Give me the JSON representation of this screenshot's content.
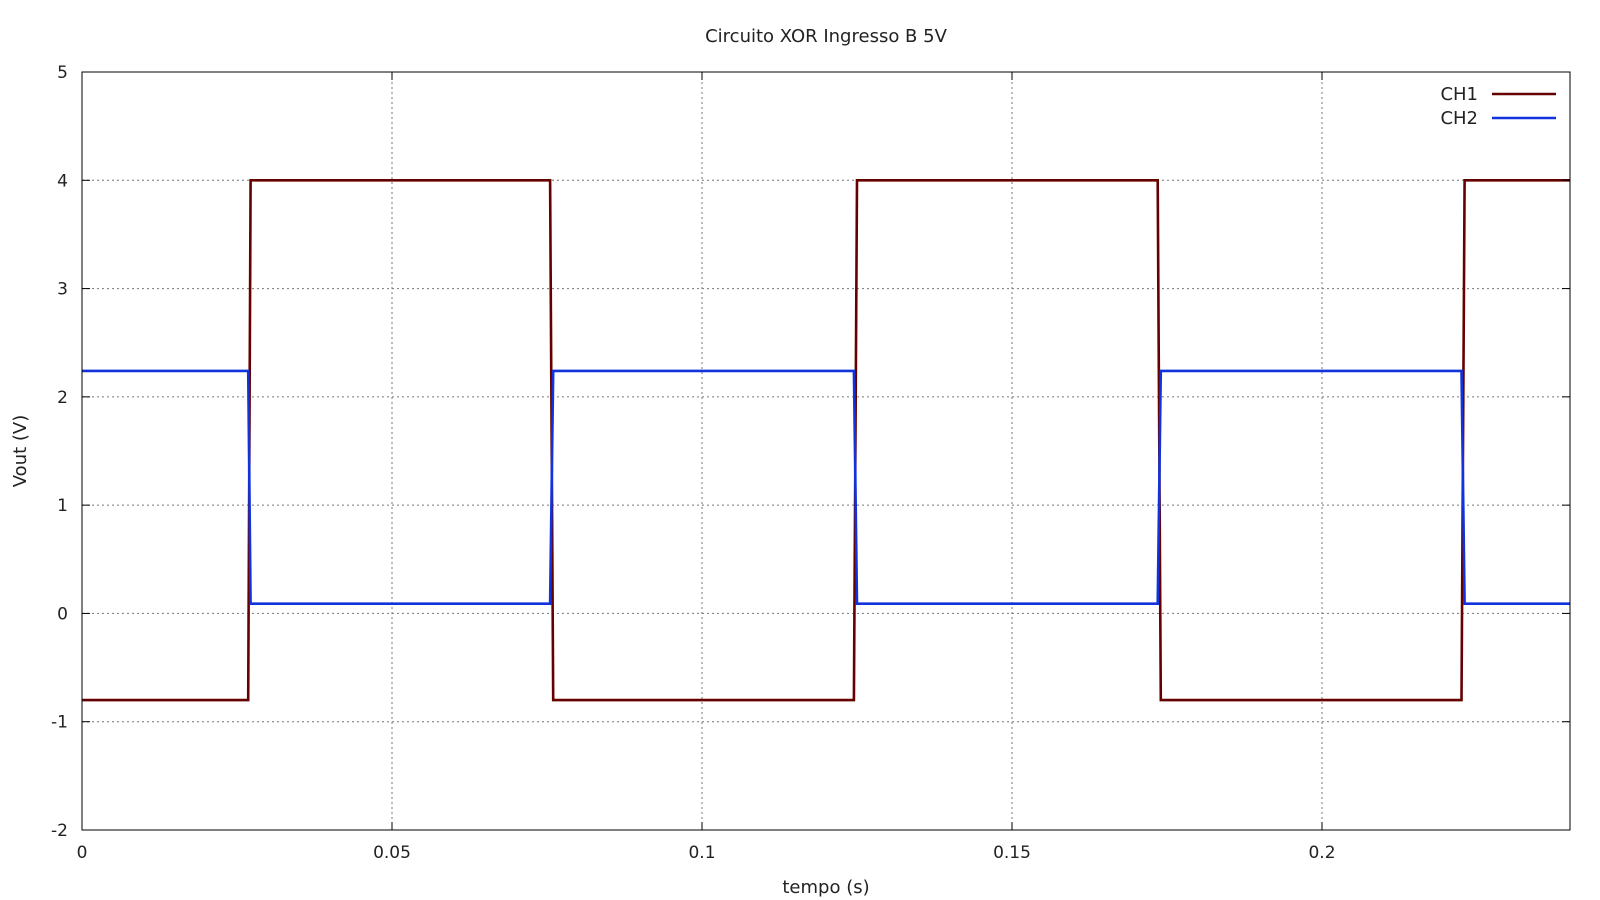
{
  "chart_data": {
    "type": "line",
    "title": "Circuito XOR Ingresso B 5V",
    "xlabel": "tempo (s)",
    "ylabel": "Vout (V)",
    "xlim": [
      0,
      0.24
    ],
    "ylim": [
      -2,
      5
    ],
    "x_ticks": [
      0,
      0.05,
      0.1,
      0.15,
      0.2
    ],
    "x_tick_labels": [
      "0",
      "0.05",
      "0.1",
      "0.15",
      "0.2"
    ],
    "y_ticks": [
      -2,
      -1,
      0,
      1,
      2,
      3,
      4,
      5
    ],
    "y_tick_labels": [
      "-2",
      "-1",
      "0",
      "1",
      "2",
      "3",
      "4",
      "5"
    ],
    "grid": true,
    "legend_position": "top-right",
    "series": [
      {
        "name": "CH1",
        "color": "#660000",
        "x": [
          0,
          0.0268,
          0.0272,
          0.0755,
          0.076,
          0.1245,
          0.125,
          0.1735,
          0.174,
          0.2225,
          0.223,
          0.24
        ],
        "y": [
          -0.8,
          -0.8,
          4.0,
          4.0,
          -0.8,
          -0.8,
          4.0,
          4.0,
          -0.8,
          -0.8,
          4.0,
          4.0
        ]
      },
      {
        "name": "CH2",
        "color": "#1133dd",
        "x": [
          0,
          0.0268,
          0.0272,
          0.0755,
          0.076,
          0.1245,
          0.125,
          0.1735,
          0.174,
          0.2225,
          0.223,
          0.24
        ],
        "y": [
          2.24,
          2.24,
          0.09,
          0.09,
          2.24,
          2.24,
          0.09,
          0.09,
          2.24,
          2.24,
          0.09,
          0.09
        ]
      }
    ]
  }
}
